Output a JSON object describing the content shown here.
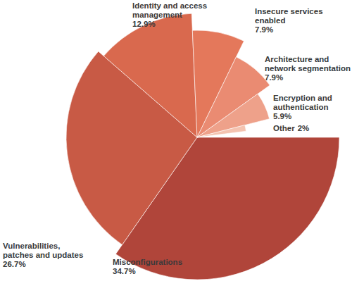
{
  "chart_data": {
    "type": "pie",
    "categories": [
      "Misconfigurations",
      "Vulnerabilities,\npatches and updates",
      "Identity and access\nmanagement",
      "Insecure services\nenabled",
      "Architecture and\nnetwork segmentation",
      "Encryption and\nauthentication",
      "Other"
    ],
    "values": [
      34.7,
      26.7,
      12.9,
      7.9,
      7.9,
      5.9,
      2
    ],
    "value_labels": [
      "34.7%",
      "26.7%",
      "12.9%",
      "7.9%",
      "7.9%",
      "5.9%",
      "2%"
    ],
    "colors": [
      "#b0453a",
      "#c85a45",
      "#d9694e",
      "#e4785b",
      "#ea8b72",
      "#eea18a",
      "#f4c3b0"
    ],
    "data_labels": true
  }
}
